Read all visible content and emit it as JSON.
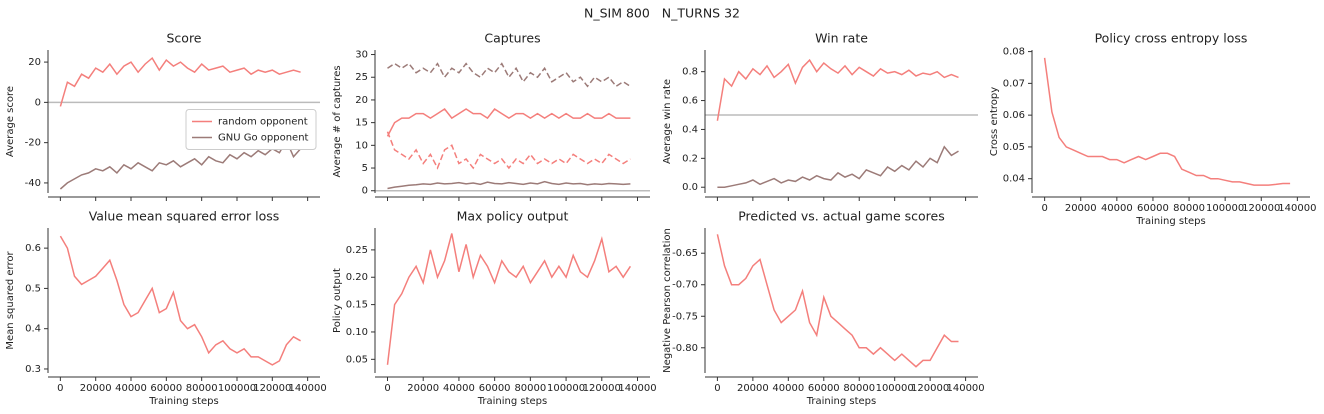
{
  "title": "N_SIM 800   N_TURNS 32",
  "chart_data": [
    {
      "type": "line",
      "title": "Score",
      "ylabel": "Average score",
      "x": [
        0,
        4000,
        8000,
        12000,
        16000,
        20000,
        24000,
        28000,
        32000,
        36000,
        40000,
        44000,
        48000,
        52000,
        56000,
        60000,
        64000,
        68000,
        72000,
        76000,
        80000,
        84000,
        88000,
        92000,
        96000,
        100000,
        104000,
        108000,
        112000,
        116000,
        120000,
        124000,
        128000,
        132000,
        136000
      ],
      "series": [
        {
          "name": "random opponent",
          "color": "#f47f7c",
          "values": [
            -2,
            10,
            8,
            14,
            12,
            17,
            15,
            19,
            14,
            18,
            20,
            15,
            19,
            22,
            16,
            21,
            18,
            20,
            17,
            15,
            19,
            16,
            17,
            18,
            15,
            16,
            17,
            14,
            16,
            15,
            16,
            14,
            15,
            16,
            15
          ]
        },
        {
          "name": "GNU Go opponent",
          "color": "#9c7b78",
          "values": [
            -43,
            -40,
            -38,
            -36,
            -35,
            -33,
            -34,
            -32,
            -35,
            -31,
            -33,
            -30,
            -32,
            -34,
            -30,
            -31,
            -29,
            -32,
            -30,
            -28,
            -31,
            -27,
            -29,
            -30,
            -26,
            -28,
            -25,
            -27,
            -24,
            -26,
            -23,
            -25,
            -19,
            -27,
            -23
          ]
        }
      ],
      "hlines": [
        0
      ],
      "legend": "center right",
      "xlim": [
        -7000,
        147000
      ],
      "xticks": [
        0,
        20000,
        40000,
        60000,
        80000,
        100000,
        120000,
        140000
      ],
      "xticklabels": false,
      "ylim": [
        -45,
        26
      ],
      "yticks": [
        -40,
        -20,
        0,
        20
      ]
    },
    {
      "type": "line",
      "title": "Captures",
      "ylabel": "Average # of captures",
      "x": [
        0,
        4000,
        8000,
        12000,
        16000,
        20000,
        24000,
        28000,
        32000,
        36000,
        40000,
        44000,
        48000,
        52000,
        56000,
        60000,
        64000,
        68000,
        72000,
        76000,
        80000,
        84000,
        88000,
        92000,
        96000,
        100000,
        104000,
        108000,
        112000,
        116000,
        120000,
        124000,
        128000,
        132000,
        136000
      ],
      "series": [
        {
          "color": "#f47f7c",
          "values": [
            12,
            15,
            16,
            16,
            17,
            17,
            16,
            17,
            18,
            16,
            17,
            18,
            17,
            17,
            16,
            18,
            17,
            16,
            17,
            17,
            16,
            17,
            16,
            17,
            16,
            17,
            16,
            16,
            17,
            16,
            16,
            17,
            16,
            16,
            16
          ]
        },
        {
          "color": "#f47f7c",
          "dashed": true,
          "values": [
            13,
            9,
            8,
            7,
            9,
            6,
            8,
            5,
            9,
            10,
            6,
            7,
            5,
            8,
            7,
            6,
            7,
            5,
            7,
            6,
            8,
            6,
            7,
            6,
            7,
            6,
            8,
            7,
            6,
            7,
            6,
            8,
            7,
            6,
            7
          ]
        },
        {
          "color": "#9c7b78",
          "values": [
            0.5,
            0.8,
            1,
            1.2,
            1.3,
            1.5,
            1.4,
            1.7,
            1.5,
            1.6,
            1.8,
            1.5,
            1.7,
            1.4,
            1.9,
            1.6,
            1.5,
            1.8,
            1.6,
            1.4,
            1.7,
            1.5,
            2,
            1.6,
            1.4,
            1.7,
            1.5,
            1.6,
            1.3,
            1.5,
            1.4,
            1.6,
            1.5,
            1.4,
            1.5
          ]
        },
        {
          "color": "#9c7b78",
          "dashed": true,
          "values": [
            27,
            28,
            27,
            28,
            26,
            27,
            26,
            28,
            25,
            27,
            26,
            28,
            26,
            25,
            27,
            26,
            28,
            25,
            27,
            24,
            26,
            25,
            27,
            24,
            25,
            26,
            24,
            25,
            23,
            25,
            24,
            25,
            23,
            24,
            23
          ]
        }
      ],
      "hlines": [
        0
      ],
      "xlim": [
        -7000,
        147000
      ],
      "xticks": [
        0,
        20000,
        40000,
        60000,
        80000,
        100000,
        120000,
        140000
      ],
      "xticklabels": false,
      "ylim": [
        -0.5,
        31
      ],
      "yticks": [
        0,
        5,
        10,
        15,
        20,
        25,
        30
      ]
    },
    {
      "type": "line",
      "title": "Win rate",
      "ylabel": "Average win rate",
      "x": [
        0,
        4000,
        8000,
        12000,
        16000,
        20000,
        24000,
        28000,
        32000,
        36000,
        40000,
        44000,
        48000,
        52000,
        56000,
        60000,
        64000,
        68000,
        72000,
        76000,
        80000,
        84000,
        88000,
        92000,
        96000,
        100000,
        104000,
        108000,
        112000,
        116000,
        120000,
        124000,
        128000,
        132000,
        136000
      ],
      "series": [
        {
          "color": "#f47f7c",
          "values": [
            0.46,
            0.75,
            0.7,
            0.8,
            0.75,
            0.82,
            0.78,
            0.84,
            0.76,
            0.8,
            0.85,
            0.72,
            0.83,
            0.88,
            0.8,
            0.86,
            0.82,
            0.79,
            0.84,
            0.78,
            0.83,
            0.8,
            0.77,
            0.82,
            0.79,
            0.8,
            0.78,
            0.81,
            0.77,
            0.79,
            0.78,
            0.8,
            0.76,
            0.78,
            0.76
          ]
        },
        {
          "color": "#9c7b78",
          "values": [
            0,
            0,
            0.01,
            0.02,
            0.03,
            0.05,
            0.02,
            0.04,
            0.06,
            0.03,
            0.05,
            0.04,
            0.07,
            0.05,
            0.08,
            0.06,
            0.05,
            0.1,
            0.07,
            0.09,
            0.06,
            0.12,
            0.1,
            0.08,
            0.14,
            0.11,
            0.15,
            0.12,
            0.18,
            0.14,
            0.2,
            0.17,
            0.28,
            0.22,
            0.25
          ]
        }
      ],
      "hlines": [
        0.5
      ],
      "xlim": [
        -7000,
        147000
      ],
      "xticks": [
        0,
        20000,
        40000,
        60000,
        80000,
        100000,
        120000,
        140000
      ],
      "xticklabels": false,
      "ylim": [
        -0.04,
        0.95
      ],
      "yticks": [
        {
          "value": 0,
          "label": "0.0"
        },
        0.2,
        0.4,
        0.6,
        0.8
      ]
    },
    {
      "type": "line",
      "title": "Policy cross entropy loss",
      "ylabel": "Cross entropy",
      "xlabel": "Training steps",
      "x": [
        0,
        4000,
        8000,
        12000,
        16000,
        20000,
        24000,
        28000,
        32000,
        36000,
        40000,
        44000,
        48000,
        52000,
        56000,
        60000,
        64000,
        68000,
        72000,
        76000,
        80000,
        84000,
        88000,
        92000,
        96000,
        100000,
        104000,
        108000,
        112000,
        116000,
        120000,
        124000,
        128000,
        132000,
        136000
      ],
      "color": "#f47f7c",
      "values": [
        0.078,
        0.061,
        0.053,
        0.05,
        0.049,
        0.048,
        0.047,
        0.047,
        0.047,
        0.046,
        0.046,
        0.045,
        0.046,
        0.047,
        0.046,
        0.047,
        0.048,
        0.048,
        0.047,
        0.043,
        0.042,
        0.041,
        0.041,
        0.04,
        0.04,
        0.0395,
        0.039,
        0.039,
        0.0385,
        0.038,
        0.038,
        0.038,
        0.0382,
        0.0385,
        0.0385
      ],
      "xlim": [
        -7000,
        147000
      ],
      "xticks": [
        0,
        20000,
        40000,
        60000,
        80000,
        100000,
        120000,
        140000
      ],
      "ylim": [
        0.0355,
        0.0805
      ],
      "yticks": [
        0.04,
        0.05,
        0.06,
        0.07,
        0.08
      ]
    },
    {
      "type": "line",
      "title": "Value mean squared error loss",
      "ylabel": "Mean squared error",
      "xlabel": "Training steps",
      "x": [
        0,
        4000,
        8000,
        12000,
        16000,
        20000,
        24000,
        28000,
        32000,
        36000,
        40000,
        44000,
        48000,
        52000,
        56000,
        60000,
        64000,
        68000,
        72000,
        76000,
        80000,
        84000,
        88000,
        92000,
        96000,
        100000,
        104000,
        108000,
        112000,
        116000,
        120000,
        124000,
        128000,
        132000,
        136000
      ],
      "color": "#f47f7c",
      "values": [
        0.63,
        0.6,
        0.53,
        0.51,
        0.52,
        0.53,
        0.55,
        0.57,
        0.52,
        0.46,
        0.43,
        0.44,
        0.47,
        0.5,
        0.44,
        0.45,
        0.49,
        0.42,
        0.4,
        0.41,
        0.38,
        0.34,
        0.36,
        0.37,
        0.35,
        0.34,
        0.35,
        0.33,
        0.33,
        0.32,
        0.31,
        0.32,
        0.36,
        0.38,
        0.37
      ],
      "xlim": [
        -7000,
        147000
      ],
      "xticks": [
        0,
        20000,
        40000,
        60000,
        80000,
        100000,
        120000,
        140000
      ],
      "ylim": [
        0.29,
        0.65
      ],
      "yticks": [
        0.3,
        0.4,
        0.5,
        0.6
      ]
    },
    {
      "type": "line",
      "title": "Max policy output",
      "ylabel": "Policy output",
      "xlabel": "Training steps",
      "x": [
        0,
        4000,
        8000,
        12000,
        16000,
        20000,
        24000,
        28000,
        32000,
        36000,
        40000,
        44000,
        48000,
        52000,
        56000,
        60000,
        64000,
        68000,
        72000,
        76000,
        80000,
        84000,
        88000,
        92000,
        96000,
        100000,
        104000,
        108000,
        112000,
        116000,
        120000,
        124000,
        128000,
        132000,
        136000
      ],
      "color": "#f47f7c",
      "values": [
        0.04,
        0.15,
        0.17,
        0.2,
        0.22,
        0.19,
        0.25,
        0.2,
        0.23,
        0.28,
        0.21,
        0.26,
        0.2,
        0.24,
        0.22,
        0.19,
        0.23,
        0.21,
        0.2,
        0.22,
        0.19,
        0.21,
        0.23,
        0.2,
        0.22,
        0.2,
        0.24,
        0.21,
        0.2,
        0.23,
        0.27,
        0.21,
        0.22,
        0.2,
        0.22
      ],
      "xlim": [
        -7000,
        147000
      ],
      "xticks": [
        0,
        20000,
        40000,
        60000,
        80000,
        100000,
        120000,
        140000
      ],
      "ylim": [
        0.025,
        0.29
      ],
      "yticks": [
        0.05,
        {
          "value": 0.1,
          "label": "0.10"
        },
        0.15,
        {
          "value": 0.2,
          "label": "0.20"
        },
        0.25
      ]
    },
    {
      "type": "line",
      "title": "Predicted vs. actual game scores",
      "ylabel": "Negative Pearson correlation",
      "xlabel": "Training steps",
      "x": [
        0,
        4000,
        8000,
        12000,
        16000,
        20000,
        24000,
        28000,
        32000,
        36000,
        40000,
        44000,
        48000,
        52000,
        56000,
        60000,
        64000,
        68000,
        72000,
        76000,
        80000,
        84000,
        88000,
        92000,
        96000,
        100000,
        104000,
        108000,
        112000,
        116000,
        120000,
        124000,
        128000,
        132000,
        136000
      ],
      "color": "#f47f7c",
      "values": [
        -0.62,
        -0.67,
        -0.7,
        -0.7,
        -0.69,
        -0.67,
        -0.66,
        -0.7,
        -0.74,
        -0.76,
        -0.75,
        -0.74,
        -0.71,
        -0.76,
        -0.78,
        -0.72,
        -0.75,
        -0.76,
        -0.77,
        -0.78,
        -0.8,
        -0.8,
        -0.81,
        -0.8,
        -0.81,
        -0.82,
        -0.81,
        -0.82,
        -0.83,
        -0.82,
        -0.82,
        -0.8,
        -0.78,
        -0.79,
        -0.79
      ],
      "xlim": [
        -7000,
        147000
      ],
      "xticks": [
        0,
        20000,
        40000,
        60000,
        80000,
        100000,
        120000,
        140000
      ],
      "ylim": [
        -0.84,
        -0.61
      ],
      "yticks": [
        {
          "value": -0.8,
          "label": "-0.80"
        },
        -0.75,
        {
          "value": -0.7,
          "label": "-0.70"
        },
        -0.65
      ]
    }
  ]
}
